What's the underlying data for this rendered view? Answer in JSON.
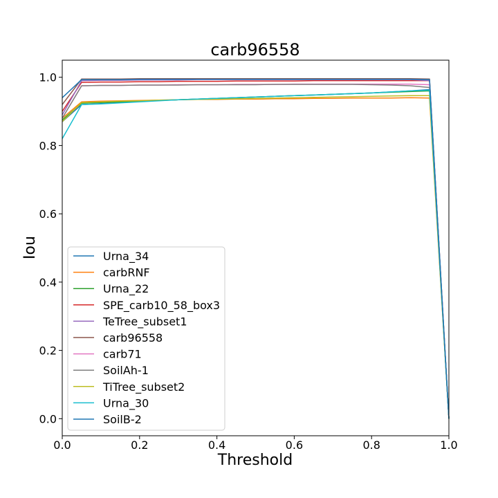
{
  "chart_data": {
    "type": "line",
    "title": "carb96558",
    "xlabel": "Threshold",
    "ylabel": "Iou",
    "xlim": [
      0.0,
      1.0
    ],
    "ylim": [
      -0.05,
      1.05
    ],
    "xticks": [
      "0.0",
      "0.2",
      "0.4",
      "0.6",
      "0.8",
      "1.0"
    ],
    "yticks": [
      "0.0",
      "0.2",
      "0.4",
      "0.6",
      "0.8",
      "1.0"
    ],
    "grid": false,
    "legend_position": "lower-left",
    "x": [
      0.0,
      0.05,
      0.1,
      0.15,
      0.2,
      0.25,
      0.3,
      0.35,
      0.4,
      0.45,
      0.5,
      0.55,
      0.6,
      0.65,
      0.7,
      0.75,
      0.8,
      0.85,
      0.9,
      0.95,
      1.0
    ],
    "series": [
      {
        "name": "Urna_34",
        "color": "#1f77b4",
        "values": [
          0.87,
          0.92,
          0.923,
          0.926,
          0.929,
          0.932,
          0.934,
          0.936,
          0.938,
          0.94,
          0.942,
          0.944,
          0.946,
          0.948,
          0.95,
          0.952,
          0.954,
          0.957,
          0.96,
          0.964,
          0.0
        ]
      },
      {
        "name": "carbRNF",
        "color": "#ff7f0e",
        "values": [
          0.88,
          0.928,
          0.93,
          0.931,
          0.932,
          0.933,
          0.934,
          0.935,
          0.935,
          0.936,
          0.936,
          0.937,
          0.937,
          0.938,
          0.938,
          0.939,
          0.939,
          0.939,
          0.94,
          0.939,
          0.0
        ]
      },
      {
        "name": "Urna_22",
        "color": "#2ca02c",
        "values": [
          0.875,
          0.924,
          0.926,
          0.928,
          0.93,
          0.932,
          0.934,
          0.936,
          0.938,
          0.94,
          0.942,
          0.944,
          0.946,
          0.948,
          0.95,
          0.952,
          0.954,
          0.956,
          0.958,
          0.96,
          0.0
        ]
      },
      {
        "name": "SPE_carb10_58_box3",
        "color": "#d62728",
        "values": [
          0.9,
          0.985,
          0.986,
          0.986,
          0.987,
          0.987,
          0.988,
          0.988,
          0.988,
          0.989,
          0.989,
          0.989,
          0.989,
          0.99,
          0.99,
          0.99,
          0.99,
          0.99,
          0.99,
          0.99,
          0.0
        ]
      },
      {
        "name": "TeTree_subset1",
        "color": "#9467bd",
        "values": [
          0.89,
          0.99,
          0.991,
          0.991,
          0.992,
          0.992,
          0.992,
          0.993,
          0.993,
          0.993,
          0.993,
          0.993,
          0.993,
          0.993,
          0.993,
          0.993,
          0.993,
          0.993,
          0.993,
          0.99,
          0.0
        ]
      },
      {
        "name": "carb96558",
        "color": "#8c564b",
        "values": [
          0.92,
          0.995,
          0.995,
          0.995,
          0.996,
          0.996,
          0.996,
          0.996,
          0.996,
          0.996,
          0.996,
          0.996,
          0.996,
          0.996,
          0.996,
          0.996,
          0.996,
          0.996,
          0.996,
          0.995,
          0.0
        ]
      },
      {
        "name": "carb71",
        "color": "#e377c2",
        "values": [
          0.88,
          0.975,
          0.976,
          0.976,
          0.977,
          0.977,
          0.978,
          0.978,
          0.978,
          0.979,
          0.979,
          0.979,
          0.98,
          0.98,
          0.98,
          0.98,
          0.98,
          0.98,
          0.98,
          0.978,
          0.0
        ]
      },
      {
        "name": "SoilAh-1",
        "color": "#7f7f7f",
        "values": [
          0.88,
          0.975,
          0.976,
          0.976,
          0.977,
          0.977,
          0.977,
          0.978,
          0.978,
          0.978,
          0.978,
          0.979,
          0.979,
          0.979,
          0.979,
          0.979,
          0.978,
          0.977,
          0.975,
          0.97,
          0.0
        ]
      },
      {
        "name": "TiTree_subset2",
        "color": "#bcbd22",
        "values": [
          0.87,
          0.926,
          0.928,
          0.93,
          0.931,
          0.933,
          0.934,
          0.935,
          0.936,
          0.937,
          0.938,
          0.939,
          0.94,
          0.941,
          0.942,
          0.943,
          0.944,
          0.945,
          0.946,
          0.946,
          0.0
        ]
      },
      {
        "name": "Urna_30",
        "color": "#17becf",
        "values": [
          0.82,
          0.92,
          0.922,
          0.925,
          0.928,
          0.931,
          0.934,
          0.936,
          0.938,
          0.94,
          0.942,
          0.944,
          0.946,
          0.948,
          0.95,
          0.952,
          0.954,
          0.957,
          0.96,
          0.962,
          0.0
        ]
      },
      {
        "name": "SoilB-2",
        "color": "#1f77b4",
        "values": [
          0.94,
          0.993,
          0.993,
          0.993,
          0.994,
          0.994,
          0.994,
          0.994,
          0.994,
          0.994,
          0.994,
          0.994,
          0.994,
          0.994,
          0.994,
          0.994,
          0.994,
          0.994,
          0.994,
          0.993,
          0.0
        ]
      }
    ]
  }
}
